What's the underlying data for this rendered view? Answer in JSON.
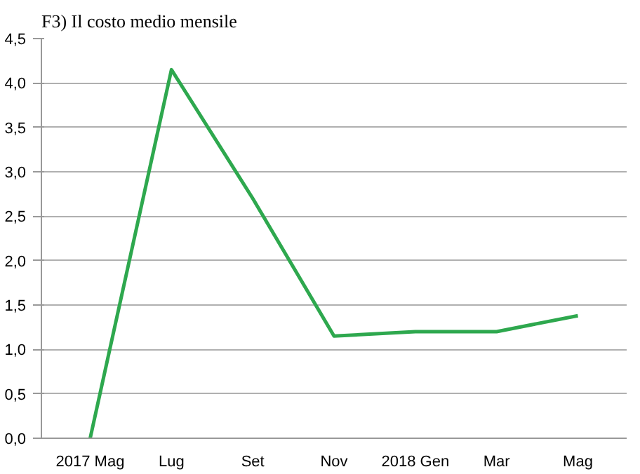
{
  "chart_data": {
    "type": "line",
    "title": "F3) Il costo medio mensile",
    "categories": [
      "2017 Mag",
      "Lug",
      "Set",
      "Nov",
      "2018 Gen",
      "Mar",
      "Mag"
    ],
    "series": [
      {
        "color": "#2ea84e",
        "values": [
          0.0,
          4.15,
          2.7,
          1.15,
          1.2,
          1.2,
          1.38
        ]
      }
    ],
    "ylim": [
      0,
      4.5
    ],
    "yticks": [
      {
        "value": 0,
        "label": "0,0"
      },
      {
        "value": 0.5,
        "label": "0,5"
      },
      {
        "value": 1,
        "label": "1,0"
      },
      {
        "value": 1.5,
        "label": "1,5"
      },
      {
        "value": 2,
        "label": "2,0"
      },
      {
        "value": 2.5,
        "label": "2,5"
      },
      {
        "value": 3,
        "label": "3,0"
      },
      {
        "value": 3.5,
        "label": "3,5"
      },
      {
        "value": 4,
        "label": "4,0"
      },
      {
        "value": 4.5,
        "label": "4,5"
      }
    ],
    "grid": "y",
    "marker": "none",
    "line_style": "solid"
  }
}
